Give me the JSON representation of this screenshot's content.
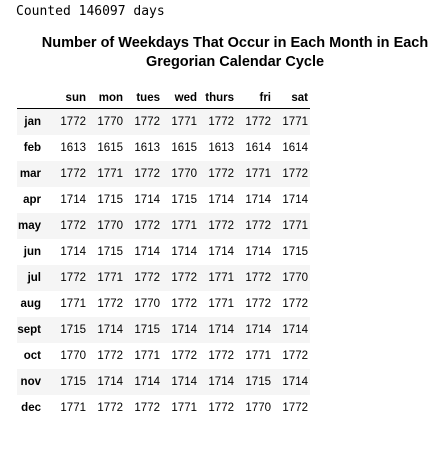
{
  "output": {
    "stdout": "Counted 146097 days"
  },
  "table": {
    "title_line1": "Number of Weekdays That Occur in Each Month in Each",
    "title_line2": "Gregorian Calendar Cycle",
    "columns": [
      "sun",
      "mon",
      "tues",
      "wed",
      "thurs",
      "fri",
      "sat"
    ],
    "rows": [
      {
        "month": "jan",
        "values": [
          "1772",
          "1770",
          "1772",
          "1771",
          "1772",
          "1772",
          "1771"
        ]
      },
      {
        "month": "feb",
        "values": [
          "1613",
          "1615",
          "1613",
          "1615",
          "1613",
          "1614",
          "1614"
        ]
      },
      {
        "month": "mar",
        "values": [
          "1772",
          "1771",
          "1772",
          "1770",
          "1772",
          "1771",
          "1772"
        ]
      },
      {
        "month": "apr",
        "values": [
          "1714",
          "1715",
          "1714",
          "1715",
          "1714",
          "1714",
          "1714"
        ]
      },
      {
        "month": "may",
        "values": [
          "1772",
          "1770",
          "1772",
          "1771",
          "1772",
          "1772",
          "1771"
        ]
      },
      {
        "month": "jun",
        "values": [
          "1714",
          "1715",
          "1714",
          "1714",
          "1714",
          "1714",
          "1715"
        ]
      },
      {
        "month": "jul",
        "values": [
          "1772",
          "1771",
          "1772",
          "1772",
          "1771",
          "1772",
          "1770"
        ]
      },
      {
        "month": "aug",
        "values": [
          "1771",
          "1772",
          "1770",
          "1772",
          "1771",
          "1772",
          "1772"
        ]
      },
      {
        "month": "sept",
        "values": [
          "1715",
          "1714",
          "1715",
          "1714",
          "1714",
          "1714",
          "1714"
        ]
      },
      {
        "month": "oct",
        "values": [
          "1770",
          "1772",
          "1771",
          "1772",
          "1772",
          "1771",
          "1772"
        ]
      },
      {
        "month": "nov",
        "values": [
          "1715",
          "1714",
          "1714",
          "1714",
          "1714",
          "1715",
          "1714"
        ]
      },
      {
        "month": "dec",
        "values": [
          "1771",
          "1772",
          "1772",
          "1771",
          "1772",
          "1770",
          "1772"
        ]
      }
    ]
  },
  "colors": {
    "stripe": "#f5f5f5",
    "header_rule": "#000000",
    "text": "#000000"
  }
}
